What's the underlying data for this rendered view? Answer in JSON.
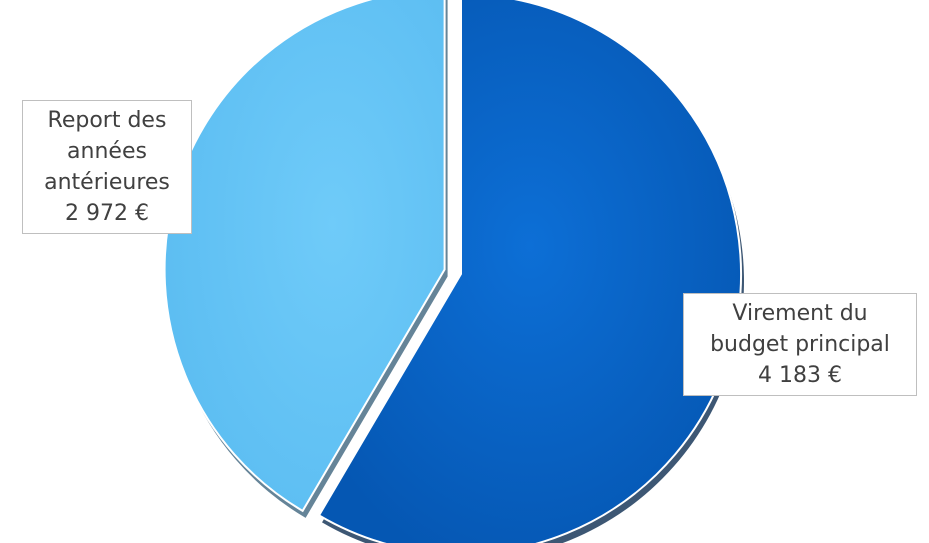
{
  "chart_data": {
    "type": "pie",
    "title": "",
    "slices": [
      {
        "label_lines": [
          "Virement du",
          "budget principal"
        ],
        "value": 4183,
        "value_text": "4 183 €",
        "color": "#0a63c4",
        "exploded": false
      },
      {
        "label_lines": [
          "Report des",
          "années",
          "antérieures"
        ],
        "value": 2972,
        "value_text": "2 972 €",
        "color": "#66c6f7",
        "exploded": true
      }
    ],
    "start": "12 o'clock",
    "direction": "clockwise",
    "legend": "none",
    "data_labels": "callout boxes"
  }
}
